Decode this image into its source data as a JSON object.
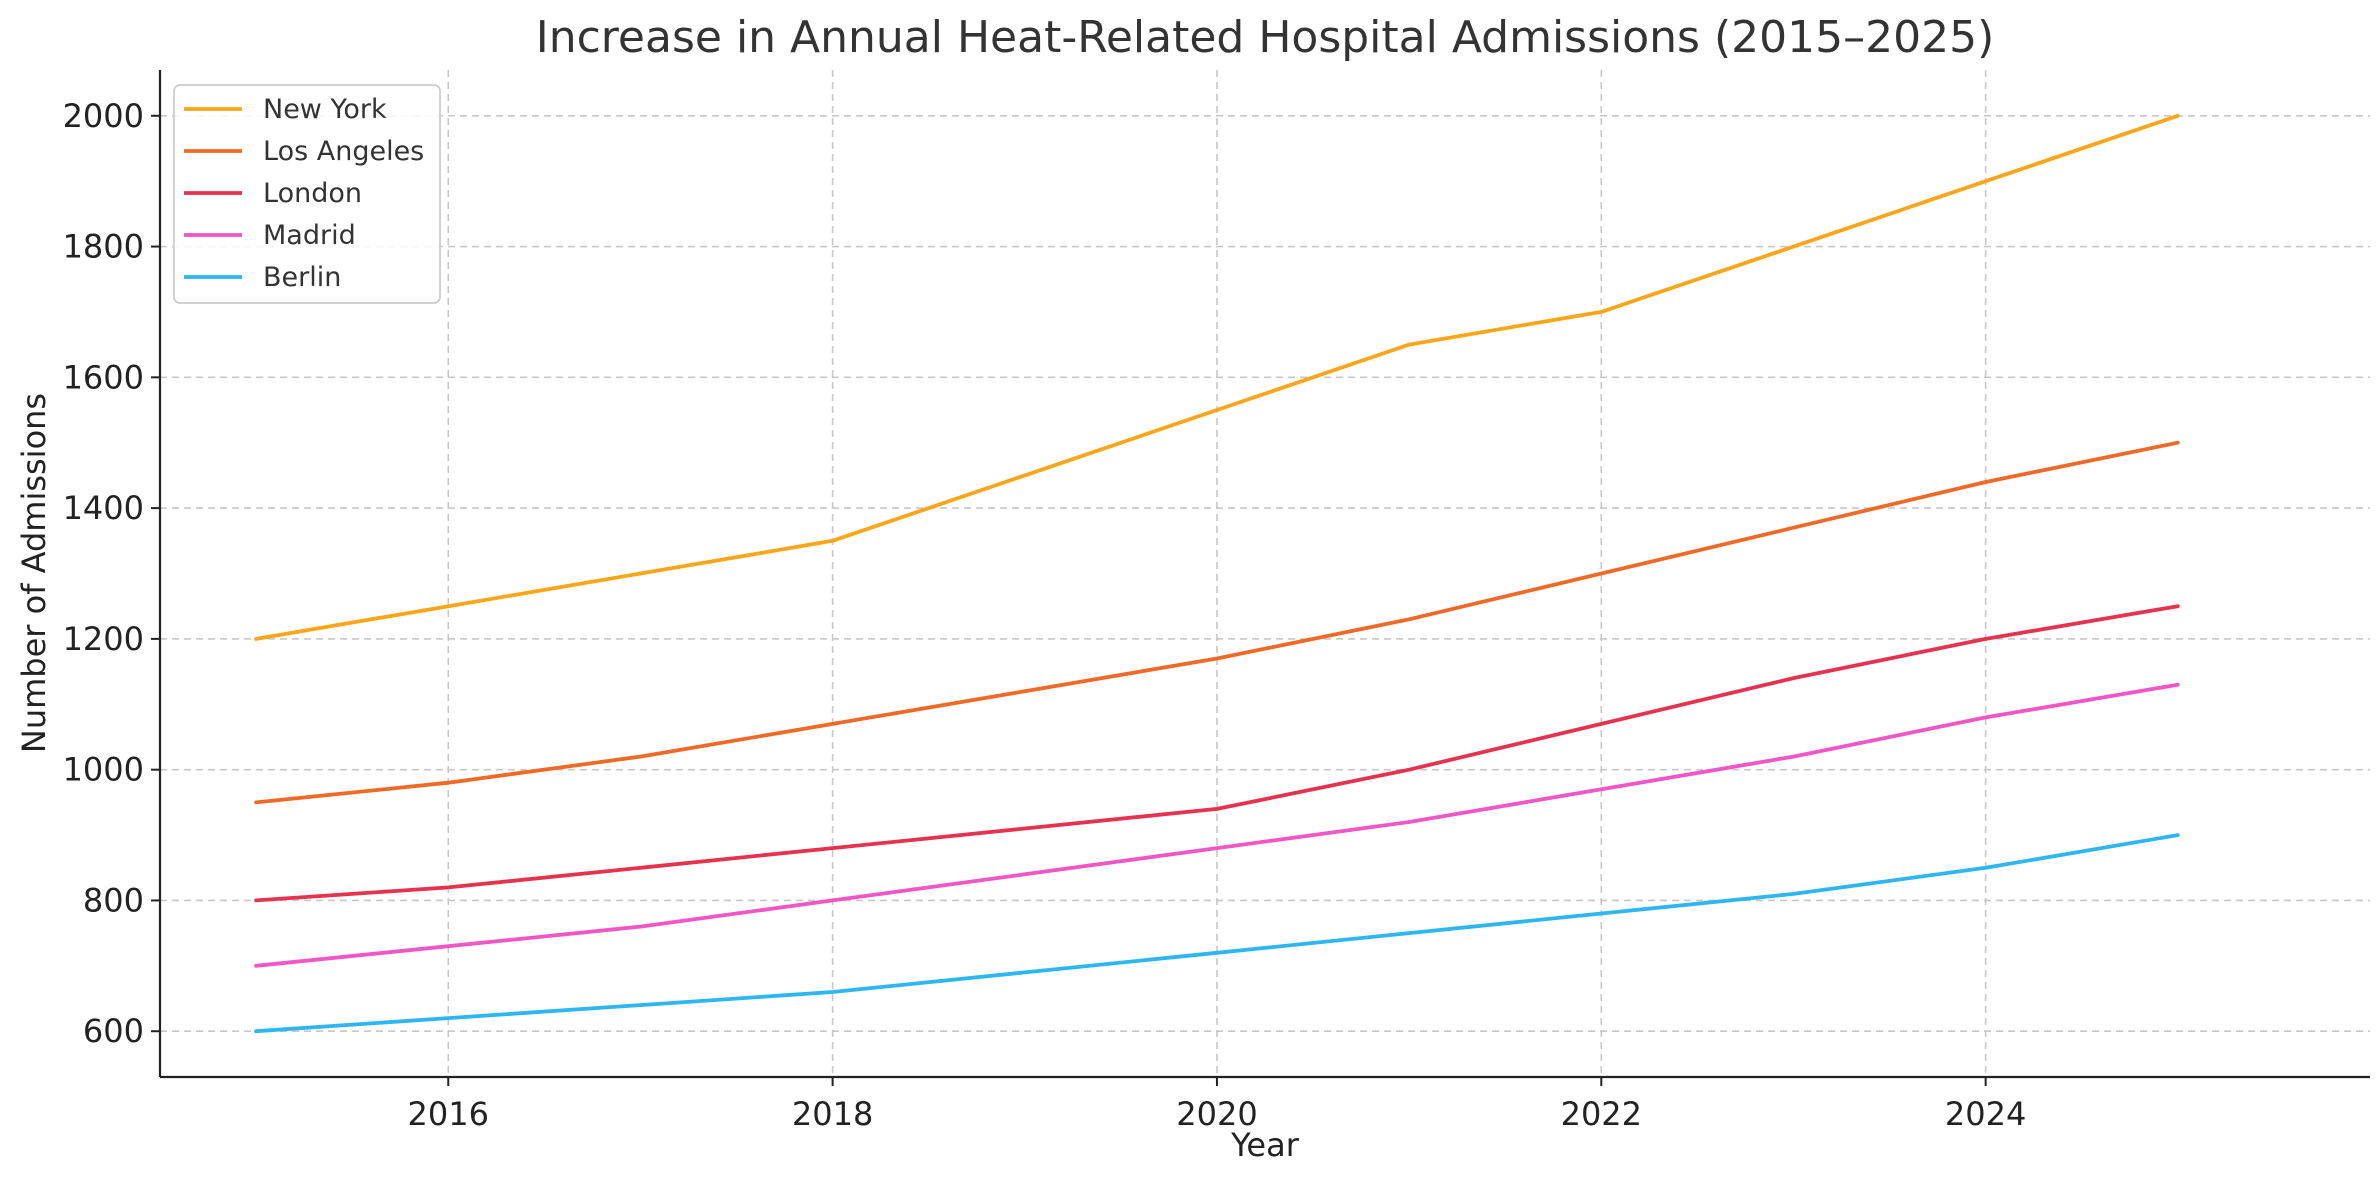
{
  "chart_data": {
    "type": "line",
    "title": "Increase in Annual Heat-Related Hospital Admissions (2015–2025)",
    "xlabel": "Year",
    "ylabel": "Number of Admissions",
    "x": [
      2015,
      2016,
      2017,
      2018,
      2019,
      2020,
      2021,
      2022,
      2023,
      2024,
      2025
    ],
    "xlim": [
      2014.5,
      2026.0
    ],
    "ylim": [
      530,
      2070
    ],
    "xticks": [
      2016,
      2018,
      2020,
      2022,
      2024
    ],
    "yticks": [
      600,
      800,
      1000,
      1200,
      1400,
      1600,
      1800,
      2000
    ],
    "grid": true,
    "legend_position": "top-left",
    "series": [
      {
        "name": "New York",
        "color": "#f9a61a",
        "values": [
          1200,
          1250,
          1300,
          1350,
          1450,
          1550,
          1650,
          1700,
          1800,
          1900,
          2000
        ]
      },
      {
        "name": "Los Angeles",
        "color": "#ef6a27",
        "values": [
          950,
          980,
          1020,
          1070,
          1120,
          1170,
          1230,
          1300,
          1370,
          1440,
          1500
        ]
      },
      {
        "name": "London",
        "color": "#e5334f",
        "values": [
          800,
          820,
          850,
          880,
          910,
          940,
          1000,
          1070,
          1140,
          1200,
          1250
        ]
      },
      {
        "name": "Madrid",
        "color": "#f056c6",
        "values": [
          700,
          730,
          760,
          800,
          840,
          880,
          920,
          970,
          1020,
          1080,
          1130
        ]
      },
      {
        "name": "Berlin",
        "color": "#2db6f0",
        "values": [
          600,
          620,
          640,
          660,
          690,
          720,
          750,
          780,
          810,
          850,
          900
        ]
      }
    ]
  }
}
